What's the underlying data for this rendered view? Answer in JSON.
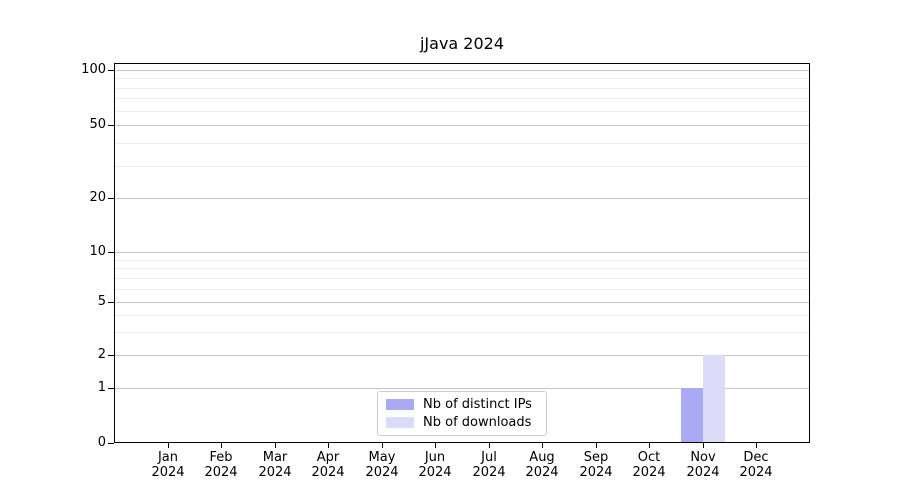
{
  "title": "jJava 2024",
  "legend": {
    "items": [
      {
        "label": "Nb of distinct IPs",
        "color": "#a9a9f4"
      },
      {
        "label": "Nb of downloads",
        "color": "#dcdcf8"
      }
    ]
  },
  "chart_data": {
    "type": "bar",
    "title": "jJava 2024",
    "categories": [
      "Jan 2024",
      "Feb 2024",
      "Mar 2024",
      "Apr 2024",
      "May 2024",
      "Jun 2024",
      "Jul 2024",
      "Aug 2024",
      "Sep 2024",
      "Oct 2024",
      "Nov 2024",
      "Dec 2024"
    ],
    "series": [
      {
        "name": "Nb of distinct IPs",
        "color": "#a9a9f4",
        "values": [
          0,
          0,
          0,
          0,
          0,
          0,
          0,
          0,
          0,
          0,
          1,
          0
        ]
      },
      {
        "name": "Nb of downloads",
        "color": "#dcdcf8",
        "values": [
          0,
          0,
          0,
          0,
          0,
          0,
          0,
          0,
          0,
          0,
          2,
          0
        ]
      }
    ],
    "xlabel": "",
    "ylabel": "",
    "yaxis": {
      "scale": "log-like with 0 baseline",
      "major_ticks": [
        0,
        1,
        2,
        5,
        10,
        20,
        50,
        100
      ],
      "minor_ticks": [
        3,
        4,
        6,
        7,
        8,
        9,
        30,
        40,
        60,
        70,
        80,
        90
      ],
      "range": [
        0,
        110
      ]
    },
    "grid": "horizontal major and minor gridlines on",
    "legend_position": "lower center inside plot"
  },
  "colors": {
    "background": "#ffffff",
    "frame": "#000000",
    "major_grid": "#c6c6c6",
    "minor_grid": "#ebebeb",
    "text": "#000000",
    "legend_border": "#cccccc"
  }
}
